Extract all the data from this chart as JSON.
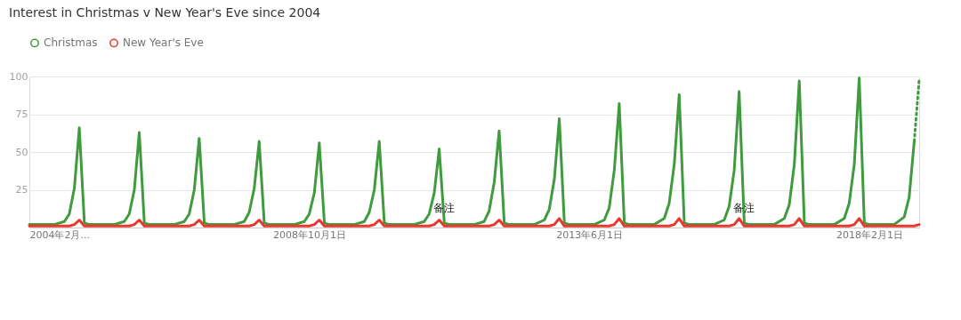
{
  "chart_data": {
    "type": "line",
    "title": "Interest in Christmas v New Year's Eve since 2004",
    "xlim": [
      "2004-02",
      "2018-12"
    ],
    "xticks": [
      {
        "value": "2004-02",
        "label": "2004年2月..."
      },
      {
        "value": "2008-10",
        "label": "2008年10月1日"
      },
      {
        "value": "2013-06",
        "label": "2013年6月1日"
      },
      {
        "value": "2018-02",
        "label": "2018年2月1日"
      }
    ],
    "ylim": [
      0,
      100
    ],
    "yticks": [
      25,
      50,
      75,
      100
    ],
    "grid": "y",
    "legend": "top left",
    "marker": "none",
    "series": [
      {
        "name": "Christmas",
        "color": "#3f9b3d",
        "line_style": "solid",
        "x": [
          "2004-02",
          "2004-07",
          "2004-09",
          "2004-10",
          "2004-11",
          "2004-12",
          "2005-01",
          "2005-02",
          "2005-07",
          "2005-09",
          "2005-10",
          "2005-11",
          "2005-12",
          "2006-01",
          "2006-02",
          "2006-07",
          "2006-09",
          "2006-10",
          "2006-11",
          "2006-12",
          "2007-01",
          "2007-02",
          "2007-07",
          "2007-09",
          "2007-10",
          "2007-11",
          "2007-12",
          "2008-01",
          "2008-02",
          "2008-07",
          "2008-09",
          "2008-10",
          "2008-11",
          "2008-12",
          "2009-01",
          "2009-02",
          "2009-07",
          "2009-09",
          "2009-10",
          "2009-11",
          "2009-12",
          "2010-01",
          "2010-02",
          "2010-07",
          "2010-09",
          "2010-10",
          "2010-11",
          "2010-12",
          "2011-01",
          "2011-02",
          "2011-07",
          "2011-09",
          "2011-10",
          "2011-11",
          "2011-12",
          "2012-01",
          "2012-02",
          "2012-07",
          "2012-09",
          "2012-10",
          "2012-11",
          "2012-12",
          "2013-01",
          "2013-02",
          "2013-07",
          "2013-09",
          "2013-10",
          "2013-11",
          "2013-12",
          "2014-01",
          "2014-02",
          "2014-07",
          "2014-09",
          "2014-10",
          "2014-11",
          "2014-12",
          "2015-01",
          "2015-02",
          "2015-07",
          "2015-09",
          "2015-10",
          "2015-11",
          "2015-12",
          "2016-01",
          "2016-02",
          "2016-07",
          "2016-09",
          "2016-10",
          "2016-11",
          "2016-12",
          "2017-01",
          "2017-02",
          "2017-07",
          "2017-09",
          "2017-10",
          "2017-11",
          "2017-12",
          "2018-01",
          "2018-02",
          "2018-07",
          "2018-09",
          "2018-10",
          "2018-11"
        ],
        "values": [
          2,
          2,
          4,
          9,
          26,
          66,
          3,
          2,
          2,
          4,
          9,
          25,
          63,
          3,
          2,
          2,
          4,
          9,
          25,
          59,
          3,
          2,
          2,
          4,
          10,
          26,
          57,
          3,
          2,
          2,
          4,
          9,
          23,
          56,
          3,
          2,
          2,
          4,
          10,
          25,
          57,
          3,
          2,
          2,
          4,
          9,
          23,
          52,
          3,
          2,
          2,
          4,
          11,
          30,
          64,
          3,
          2,
          2,
          5,
          12,
          32,
          72,
          3,
          2,
          2,
          5,
          13,
          38,
          82,
          3,
          2,
          2,
          6,
          16,
          42,
          88,
          3,
          2,
          2,
          5,
          14,
          38,
          90,
          3,
          2,
          2,
          6,
          15,
          42,
          97,
          3,
          2,
          2,
          6,
          16,
          42,
          99,
          3,
          2,
          2,
          7,
          20,
          57
        ]
      },
      {
        "color": "#3f9b3d",
        "line_style": "dotted",
        "x": [
          "2018-11",
          "2018-12"
        ],
        "values": [
          57,
          98
        ]
      },
      {
        "name": "New Year's Eve",
        "color": "#e8392f",
        "line_style": "solid",
        "x": [
          "2004-02",
          "2004-07",
          "2004-09",
          "2004-10",
          "2004-11",
          "2004-12",
          "2005-01",
          "2005-02",
          "2005-07",
          "2005-09",
          "2005-10",
          "2005-11",
          "2005-12",
          "2006-01",
          "2006-02",
          "2006-07",
          "2006-09",
          "2006-10",
          "2006-11",
          "2006-12",
          "2007-01",
          "2007-02",
          "2007-07",
          "2007-09",
          "2007-10",
          "2007-11",
          "2007-12",
          "2008-01",
          "2008-02",
          "2008-07",
          "2008-09",
          "2008-10",
          "2008-11",
          "2008-12",
          "2009-01",
          "2009-02",
          "2009-07",
          "2009-09",
          "2009-10",
          "2009-11",
          "2009-12",
          "2010-01",
          "2010-02",
          "2010-07",
          "2010-09",
          "2010-10",
          "2010-11",
          "2010-12",
          "2011-01",
          "2011-02",
          "2011-07",
          "2011-09",
          "2011-10",
          "2011-11",
          "2011-12",
          "2012-01",
          "2012-02",
          "2012-07",
          "2012-09",
          "2012-10",
          "2012-11",
          "2012-12",
          "2013-01",
          "2013-02",
          "2013-07",
          "2013-09",
          "2013-10",
          "2013-11",
          "2013-12",
          "2014-01",
          "2014-02",
          "2014-07",
          "2014-09",
          "2014-10",
          "2014-11",
          "2014-12",
          "2015-01",
          "2015-02",
          "2015-07",
          "2015-09",
          "2015-10",
          "2015-11",
          "2015-12",
          "2016-01",
          "2016-02",
          "2016-07",
          "2016-09",
          "2016-10",
          "2016-11",
          "2016-12",
          "2017-01",
          "2017-02",
          "2017-07",
          "2017-09",
          "2017-10",
          "2017-11",
          "2017-12",
          "2018-01",
          "2018-02",
          "2018-07",
          "2018-09",
          "2018-10",
          "2018-11",
          "2018-12"
        ],
        "values": [
          1,
          1,
          1,
          1,
          2,
          5,
          1,
          1,
          1,
          1,
          1,
          2,
          5,
          1,
          1,
          1,
          1,
          1,
          2,
          5,
          1,
          1,
          1,
          1,
          1,
          2,
          5,
          1,
          1,
          1,
          1,
          1,
          2,
          5,
          1,
          1,
          1,
          1,
          1,
          2,
          5,
          1,
          1,
          1,
          1,
          1,
          2,
          5,
          1,
          1,
          1,
          1,
          1,
          2,
          5,
          1,
          1,
          1,
          1,
          1,
          2,
          6,
          1,
          1,
          1,
          1,
          1,
          2,
          6,
          1,
          1,
          1,
          1,
          1,
          2,
          6,
          1,
          1,
          1,
          1,
          1,
          2,
          6,
          1,
          1,
          1,
          1,
          1,
          2,
          6,
          1,
          1,
          1,
          1,
          1,
          2,
          6,
          1,
          1,
          1,
          1,
          1,
          1,
          2
        ]
      }
    ],
    "annotations": [
      {
        "text": "备注",
        "x": "2011-01",
        "y": 5
      },
      {
        "text": "备注",
        "x": "2016-01",
        "y": 5
      }
    ]
  }
}
